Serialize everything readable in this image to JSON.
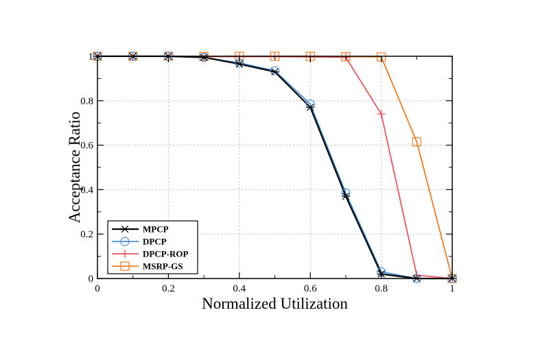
{
  "chart_data": {
    "type": "line",
    "title": "",
    "xlabel": "Normalized Utilization",
    "ylabel": "Acceptance Ratio",
    "xlim": [
      0,
      1
    ],
    "ylim": [
      0,
      1
    ],
    "x_ticks": [
      0,
      0.2,
      0.4,
      0.6,
      0.8,
      1
    ],
    "y_ticks": [
      0,
      0.2,
      0.4,
      0.6,
      0.8,
      1
    ],
    "x_tick_labels": [
      "0",
      "0.2",
      "0.4",
      "0.6",
      "0.8",
      "1"
    ],
    "y_tick_labels": [
      "0",
      "0.2",
      "0.4",
      "0.6",
      "0.8",
      "1"
    ],
    "grid": true,
    "legend_position": "bottom-left",
    "x": [
      0,
      0.1,
      0.2,
      0.3,
      0.4,
      0.5,
      0.6,
      0.7,
      0.8,
      0.9,
      1.0
    ],
    "series": [
      {
        "name": "MPCP",
        "color": "#000000",
        "marker": "asterisk",
        "values": [
          1.0,
          1.0,
          1.0,
          0.995,
          0.965,
          0.93,
          0.77,
          0.37,
          0.02,
          0.0,
          0.0
        ]
      },
      {
        "name": "DPCP",
        "color": "#4a90d9",
        "marker": "circle",
        "values": [
          1.0,
          1.0,
          1.0,
          0.995,
          0.97,
          0.935,
          0.785,
          0.385,
          0.03,
          0.0,
          0.0
        ]
      },
      {
        "name": "DPCP-ROP",
        "color": "#e8555e",
        "marker": "plus",
        "values": [
          1.0,
          1.0,
          1.0,
          0.998,
          0.998,
          0.998,
          0.997,
          0.995,
          0.74,
          0.015,
          0.0
        ]
      },
      {
        "name": "MSRP-GS",
        "color": "#ee7b22",
        "marker": "square",
        "values": [
          1.0,
          1.0,
          1.0,
          0.999,
          1.0,
          1.0,
          1.0,
          0.998,
          0.997,
          0.615,
          0.0
        ]
      }
    ]
  }
}
